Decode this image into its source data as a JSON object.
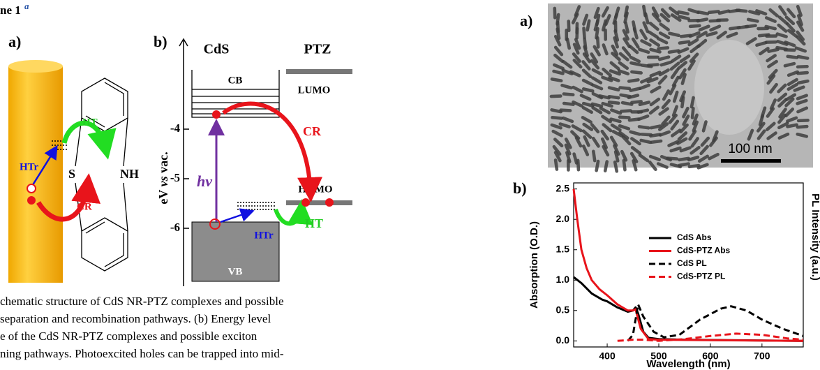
{
  "heading": {
    "text": "ne 1",
    "superscript": "a"
  },
  "scheme_a": {
    "label": "a)",
    "ht": "HT",
    "htr": "HTr",
    "s": "S",
    "nh": "NH",
    "cr": "CR"
  },
  "scheme_b": {
    "label": "b)",
    "cds": "CdS",
    "ptz": "PTZ",
    "cb": "CB",
    "lumo": "LUMO",
    "cr": "CR",
    "homo": "HOMO",
    "ht": "HT",
    "htr": "HTr",
    "vb": "VB",
    "hv": "hv",
    "axis_label_pre": "eV ",
    "axis_label_italic": "vs",
    "axis_label_post": " vac.",
    "energy_ticks": [
      -4,
      -5,
      -6
    ]
  },
  "caption": [
    "chematic structure of CdS NR-PTZ complexes and possible",
    "separation and recombination pathways. (b) Energy level",
    "e of the CdS NR-PTZ complexes and possible exciton",
    "ning pathways. Photoexcited holes can be trapped into mid-"
  ],
  "figure": {
    "panel_a": {
      "label": "a)",
      "scale_bar": "100 nm"
    },
    "panel_b_label": "b)"
  },
  "chart_data": {
    "type": "line",
    "x_label": "Wavelength (nm)",
    "y_label": "Absorption (O.D.)",
    "y2_label": "PL Intensity (a.u.)",
    "xlim": [
      335,
      780
    ],
    "xticks": [
      400,
      500,
      600,
      700
    ],
    "ylim": [
      -0.1,
      2.6
    ],
    "yticks": [
      {
        "value": 0,
        "label": "0.0"
      },
      0.5,
      {
        "value": 1,
        "label": "1.0"
      },
      1.5,
      {
        "value": 2,
        "label": "2.0"
      },
      2.5
    ],
    "series": [
      {
        "name": "CdS Abs",
        "color": "#000000",
        "dashed": false,
        "x": [
          335,
          350,
          370,
          390,
          400,
          420,
          440,
          450,
          455,
          460,
          470,
          480,
          500,
          550,
          650,
          780
        ],
        "values": [
          1.05,
          0.95,
          0.78,
          0.68,
          0.65,
          0.55,
          0.48,
          0.5,
          0.55,
          0.45,
          0.15,
          0.05,
          0.03,
          0.02,
          0.01,
          0.0
        ]
      },
      {
        "name": "CdS-PTZ Abs",
        "color": "#e8141b",
        "dashed": false,
        "x": [
          335,
          342,
          350,
          360,
          370,
          385,
          400,
          420,
          440,
          450,
          455,
          465,
          480,
          500,
          780
        ],
        "values": [
          2.5,
          2.0,
          1.5,
          1.2,
          1.0,
          0.85,
          0.75,
          0.6,
          0.5,
          0.5,
          0.52,
          0.2,
          0.03,
          0.02,
          0.0
        ]
      },
      {
        "name": "CdS PL",
        "color": "#000000",
        "dashed": true,
        "x": [
          440,
          450,
          460,
          470,
          490,
          510,
          540,
          580,
          620,
          640,
          670,
          700,
          740,
          780
        ],
        "values": [
          0.0,
          0.1,
          0.6,
          0.4,
          0.15,
          0.06,
          0.1,
          0.35,
          0.53,
          0.57,
          0.5,
          0.35,
          0.2,
          0.08
        ]
      },
      {
        "name": "CdS-PTZ PL",
        "color": "#e8141b",
        "dashed": true,
        "x": [
          420,
          450,
          470,
          500,
          550,
          600,
          650,
          700,
          750,
          780
        ],
        "values": [
          0.0,
          0.02,
          0.02,
          0.0,
          0.03,
          0.08,
          0.12,
          0.1,
          0.04,
          0.02
        ]
      }
    ]
  }
}
